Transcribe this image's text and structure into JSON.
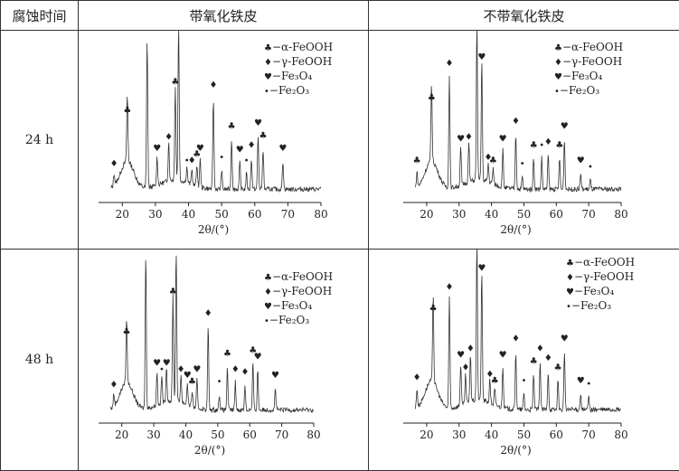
{
  "table": {
    "header_time": "腐蚀时间",
    "header_col1": "带氧化铁皮",
    "header_col2": "不带氧化铁皮",
    "row_labels": [
      "24 h",
      "48 h"
    ]
  },
  "legend": [
    {
      "symbol": "♣",
      "label": "−α-FeOOH"
    },
    {
      "symbol": "♦",
      "label": "−γ-FeOOH"
    },
    {
      "symbol": "♥",
      "label": "−Fe₃O₄"
    },
    {
      "symbol": "•",
      "label": "−Fe₂O₃"
    }
  ],
  "chart_data": [
    {
      "type": "line",
      "panel": "24 h / 带氧化铁皮",
      "xlabel": "2θ/(°)",
      "xlim": [
        15,
        80
      ],
      "xticks": [
        20,
        30,
        40,
        50,
        60,
        70,
        80
      ],
      "peaks": [
        {
          "x": 17.5,
          "y": 0.08,
          "phase": "♦"
        },
        {
          "x": 21.5,
          "y": 0.42,
          "phase": "♣"
        },
        {
          "x": 27.5,
          "y": 0.95,
          "phase": "♦"
        },
        {
          "x": 30.5,
          "y": 0.18,
          "phase": "♥"
        },
        {
          "x": 34.0,
          "y": 0.25,
          "phase": "♦"
        },
        {
          "x": 36.0,
          "y": 0.6,
          "phase": "♣"
        },
        {
          "x": 37.0,
          "y": 1.0,
          "phase": "♥"
        },
        {
          "x": 39.5,
          "y": 0.1,
          "phase": "•"
        },
        {
          "x": 41.0,
          "y": 0.1,
          "phase": "♦"
        },
        {
          "x": 42.5,
          "y": 0.14,
          "phase": "♣"
        },
        {
          "x": 43.5,
          "y": 0.18,
          "phase": "♥"
        },
        {
          "x": 47.5,
          "y": 0.58,
          "phase": "♦"
        },
        {
          "x": 50.0,
          "y": 0.12,
          "phase": "•"
        },
        {
          "x": 53.0,
          "y": 0.32,
          "phase": "♣"
        },
        {
          "x": 55.5,
          "y": 0.17,
          "phase": "♥"
        },
        {
          "x": 57.5,
          "y": 0.1,
          "phase": "•"
        },
        {
          "x": 59.0,
          "y": 0.2,
          "phase": "♦"
        },
        {
          "x": 61.0,
          "y": 0.34,
          "phase": "♥"
        },
        {
          "x": 62.5,
          "y": 0.26,
          "phase": "♣"
        },
        {
          "x": 68.5,
          "y": 0.18,
          "phase": "♥"
        }
      ]
    },
    {
      "type": "line",
      "panel": "24 h / 不带氧化铁皮",
      "xlabel": "2θ/(°)",
      "xlim": [
        15,
        80
      ],
      "xticks": [
        20,
        30,
        40,
        50,
        60,
        70,
        80
      ],
      "peaks": [
        {
          "x": 17.0,
          "y": 0.1,
          "phase": "♣"
        },
        {
          "x": 21.5,
          "y": 0.5,
          "phase": "♣"
        },
        {
          "x": 27.0,
          "y": 0.72,
          "phase": "♦"
        },
        {
          "x": 30.5,
          "y": 0.24,
          "phase": "♥"
        },
        {
          "x": 33.0,
          "y": 0.25,
          "phase": "♦"
        },
        {
          "x": 35.5,
          "y": 1.0,
          "phase": "♣"
        },
        {
          "x": 37.0,
          "y": 0.76,
          "phase": "♥"
        },
        {
          "x": 39.0,
          "y": 0.12,
          "phase": "♦"
        },
        {
          "x": 40.5,
          "y": 0.1,
          "phase": "♣"
        },
        {
          "x": 43.5,
          "y": 0.24,
          "phase": "♥"
        },
        {
          "x": 47.5,
          "y": 0.35,
          "phase": "♦"
        },
        {
          "x": 49.5,
          "y": 0.08,
          "phase": "•"
        },
        {
          "x": 53.0,
          "y": 0.2,
          "phase": "♣"
        },
        {
          "x": 55.5,
          "y": 0.2,
          "phase": "•"
        },
        {
          "x": 57.5,
          "y": 0.22,
          "phase": "♦"
        },
        {
          "x": 61.0,
          "y": 0.2,
          "phase": "♣"
        },
        {
          "x": 62.5,
          "y": 0.32,
          "phase": "♥"
        },
        {
          "x": 67.5,
          "y": 0.1,
          "phase": "♥"
        },
        {
          "x": 70.5,
          "y": 0.06,
          "phase": "•"
        }
      ]
    },
    {
      "type": "line",
      "panel": "48 h / 带氧化铁皮",
      "xlabel": "2θ/(°)",
      "xlim": [
        15,
        80
      ],
      "xticks": [
        20,
        30,
        40,
        50,
        60,
        70,
        80
      ],
      "peaks": [
        {
          "x": 17.5,
          "y": 0.08,
          "phase": "♦"
        },
        {
          "x": 21.5,
          "y": 0.42,
          "phase": "♣"
        },
        {
          "x": 27.5,
          "y": 1.0,
          "phase": "♦"
        },
        {
          "x": 31.0,
          "y": 0.22,
          "phase": "♥"
        },
        {
          "x": 32.5,
          "y": 0.18,
          "phase": "•"
        },
        {
          "x": 34.0,
          "y": 0.22,
          "phase": "♥"
        },
        {
          "x": 36.0,
          "y": 0.68,
          "phase": "♣"
        },
        {
          "x": 37.0,
          "y": 0.98,
          "phase": "♥"
        },
        {
          "x": 38.5,
          "y": 0.18,
          "phase": "♦"
        },
        {
          "x": 40.5,
          "y": 0.14,
          "phase": "♥"
        },
        {
          "x": 42.0,
          "y": 0.1,
          "phase": "♣"
        },
        {
          "x": 43.5,
          "y": 0.18,
          "phase": "♥"
        },
        {
          "x": 47.0,
          "y": 0.54,
          "phase": "♦"
        },
        {
          "x": 50.5,
          "y": 0.1,
          "phase": "•"
        },
        {
          "x": 53.0,
          "y": 0.28,
          "phase": "♣"
        },
        {
          "x": 55.5,
          "y": 0.18,
          "phase": "♦"
        },
        {
          "x": 58.5,
          "y": 0.16,
          "phase": "♦"
        },
        {
          "x": 61.0,
          "y": 0.3,
          "phase": "♣"
        },
        {
          "x": 62.5,
          "y": 0.26,
          "phase": "♥"
        },
        {
          "x": 68.0,
          "y": 0.14,
          "phase": "♥"
        }
      ]
    },
    {
      "type": "line",
      "panel": "48 h / 不带氧化铁皮",
      "xlabel": "2θ/(°)",
      "xlim": [
        15,
        80
      ],
      "xticks": [
        20,
        30,
        40,
        50,
        60,
        70,
        80
      ],
      "peaks": [
        {
          "x": 17.0,
          "y": 0.12,
          "phase": "♦"
        },
        {
          "x": 22.0,
          "y": 0.55,
          "phase": "♣"
        },
        {
          "x": 27.0,
          "y": 0.68,
          "phase": "♦"
        },
        {
          "x": 30.5,
          "y": 0.26,
          "phase": "♥"
        },
        {
          "x": 32.0,
          "y": 0.18,
          "phase": "♦"
        },
        {
          "x": 33.5,
          "y": 0.3,
          "phase": "♦"
        },
        {
          "x": 35.5,
          "y": 1.0,
          "phase": "♣"
        },
        {
          "x": 37.0,
          "y": 0.8,
          "phase": "♥"
        },
        {
          "x": 39.5,
          "y": 0.14,
          "phase": "♦"
        },
        {
          "x": 41.0,
          "y": 0.1,
          "phase": "♣"
        },
        {
          "x": 43.5,
          "y": 0.26,
          "phase": "♥"
        },
        {
          "x": 47.5,
          "y": 0.36,
          "phase": "♦"
        },
        {
          "x": 50.0,
          "y": 0.1,
          "phase": "•"
        },
        {
          "x": 53.0,
          "y": 0.22,
          "phase": "♣"
        },
        {
          "x": 55.0,
          "y": 0.3,
          "phase": "♦"
        },
        {
          "x": 57.5,
          "y": 0.24,
          "phase": "♦"
        },
        {
          "x": 60.5,
          "y": 0.18,
          "phase": "♣"
        },
        {
          "x": 62.5,
          "y": 0.36,
          "phase": "♥"
        },
        {
          "x": 67.5,
          "y": 0.1,
          "phase": "♥"
        },
        {
          "x": 70.0,
          "y": 0.08,
          "phase": "•"
        }
      ]
    }
  ]
}
